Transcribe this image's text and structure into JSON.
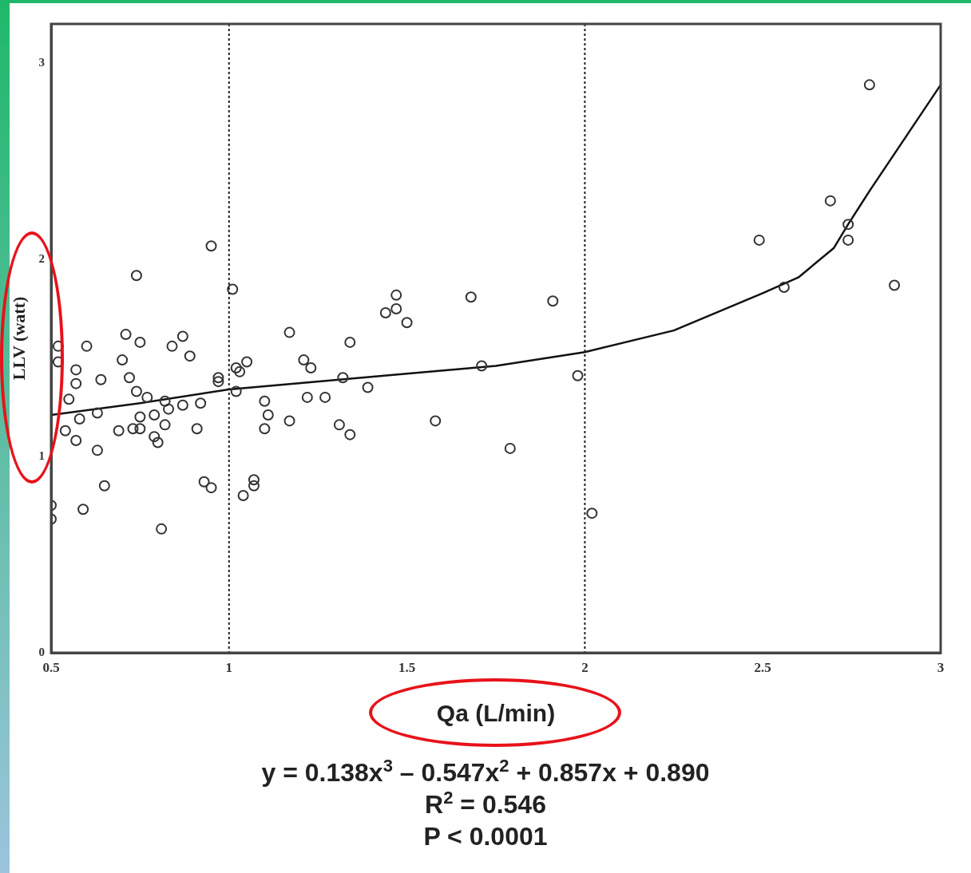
{
  "chart_data": {
    "type": "scatter",
    "xlabel": "Qa (L/min)",
    "ylabel": "LLV (watt)",
    "xlim": [
      0.5,
      3
    ],
    "xticks": [
      0.5,
      1,
      1.5,
      2,
      2.5,
      3
    ],
    "ylim": [
      0,
      3.2
    ],
    "yticks": [
      0,
      1,
      2,
      3
    ],
    "grid": false,
    "legend": false,
    "ref_lines": [
      {
        "axis": "x",
        "value": 1,
        "line_style": "dotted",
        "color": "#222222"
      },
      {
        "axis": "x",
        "value": 2,
        "line_style": "dotted",
        "color": "#222222"
      }
    ],
    "annotations": [
      "y = 0.138x$^{3}$ – 0.547x$^{2}$ + 0.857x + 0.890",
      "R$^{2}$ = 0.546",
      "P < 0.0001"
    ],
    "series": [
      {
        "marker": "circle",
        "color": "#333333",
        "x": [
          2.8,
          2.69,
          2.49,
          2.74,
          2.74,
          2.56,
          2.87,
          0.95,
          0.74,
          1.01,
          1.47,
          1.47,
          1.44,
          1.5,
          1.68,
          1.91,
          1.17,
          1.34,
          1.21,
          1.23,
          1.32,
          1.39,
          1.22,
          1.27,
          1.1,
          1.11,
          1.17,
          1.1,
          1.31,
          1.34,
          1.58,
          1.71,
          1.79,
          1.98,
          2.02,
          0.71,
          0.75,
          0.87,
          0.84,
          0.89,
          0.52,
          0.6,
          0.52,
          0.57,
          0.7,
          0.57,
          0.64,
          0.72,
          0.74,
          0.77,
          0.82,
          0.55,
          0.97,
          0.97,
          1.02,
          1.05,
          1.03,
          1.02,
          0.63,
          0.58,
          0.75,
          0.79,
          0.83,
          0.87,
          0.92,
          0.82,
          0.91,
          0.69,
          0.73,
          0.75,
          0.54,
          0.57,
          0.79,
          0.8,
          0.63,
          0.65,
          0.59,
          0.81,
          0.5,
          0.5,
          0.93,
          0.95,
          1.07,
          1.07,
          1.04
        ],
        "values": [
          2.89,
          2.3,
          2.1,
          2.18,
          2.1,
          1.86,
          1.87,
          2.07,
          1.92,
          1.85,
          1.82,
          1.75,
          1.73,
          1.68,
          1.81,
          1.79,
          1.63,
          1.58,
          1.49,
          1.45,
          1.4,
          1.35,
          1.3,
          1.3,
          1.28,
          1.21,
          1.18,
          1.14,
          1.16,
          1.11,
          1.18,
          1.46,
          1.04,
          1.41,
          0.71,
          1.62,
          1.58,
          1.61,
          1.56,
          1.51,
          1.56,
          1.56,
          1.48,
          1.44,
          1.49,
          1.37,
          1.39,
          1.4,
          1.33,
          1.3,
          1.28,
          1.29,
          1.4,
          1.38,
          1.45,
          1.48,
          1.43,
          1.33,
          1.22,
          1.19,
          1.2,
          1.21,
          1.24,
          1.26,
          1.27,
          1.16,
          1.14,
          1.13,
          1.14,
          1.14,
          1.13,
          1.08,
          1.1,
          1.07,
          1.03,
          0.85,
          0.73,
          0.63,
          0.75,
          0.68,
          0.87,
          0.84,
          0.88,
          0.85,
          0.8
        ]
      },
      {
        "type": "line",
        "color": "#111111",
        "x": [
          0.5,
          0.75,
          1,
          1.5,
          1.75,
          2,
          2.25,
          2.5,
          2.6,
          2.7,
          2.74,
          2.8,
          2.9,
          3
        ],
        "values": [
          1.21,
          1.27,
          1.34,
          1.42,
          1.46,
          1.53,
          1.64,
          1.83,
          1.91,
          2.06,
          2.18,
          2.35,
          2.62,
          2.89
        ]
      }
    ]
  }
}
